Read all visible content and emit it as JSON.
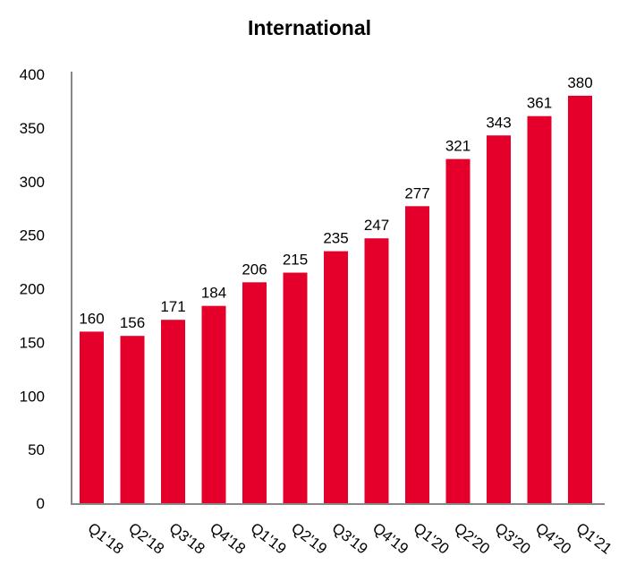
{
  "chart_data": {
    "type": "bar",
    "title": "International",
    "xlabel": "",
    "ylabel": "",
    "categories": [
      "Q1'18",
      "Q2'18",
      "Q3'18",
      "Q4'18",
      "Q1'19",
      "Q2'19",
      "Q3'19",
      "Q4'19",
      "Q1'20",
      "Q2'20",
      "Q3'20",
      "Q4'20",
      "Q1'21"
    ],
    "values": [
      160,
      156,
      171,
      184,
      206,
      215,
      235,
      247,
      277,
      321,
      343,
      361,
      380
    ],
    "ylim": [
      0,
      400
    ],
    "yticks": [
      0,
      50,
      100,
      150,
      200,
      250,
      300,
      350,
      400
    ],
    "grid": false,
    "legend": "none",
    "bar_color": "#E4002B",
    "data_labels": true
  }
}
